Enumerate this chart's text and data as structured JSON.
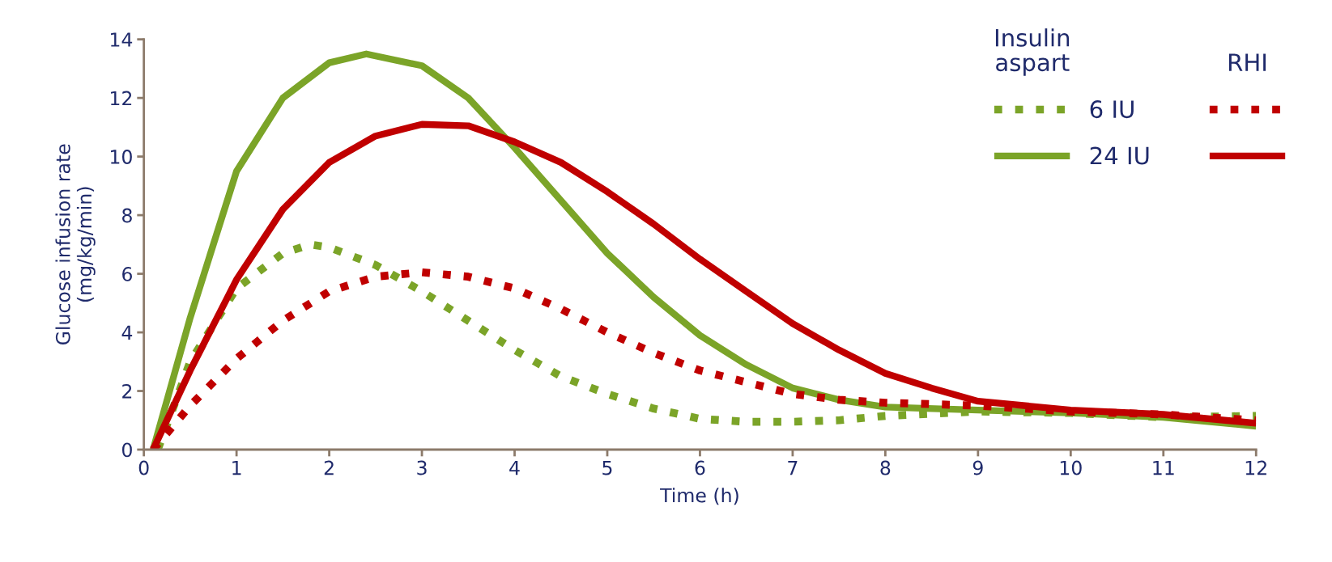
{
  "chart_data": {
    "type": "line",
    "xlabel": "Time (h)",
    "ylabel": "Glucose infusion rate\n(mg/kg/min)",
    "xlim": [
      0,
      12
    ],
    "xticks": [
      0,
      1,
      2,
      3,
      4,
      5,
      6,
      7,
      8,
      9,
      10,
      11,
      12
    ],
    "ylim": [
      0,
      14
    ],
    "yticks": [
      0,
      2,
      4,
      6,
      8,
      10,
      12,
      14
    ],
    "grid": false,
    "legend": "top right",
    "marker": "none",
    "annotations": [
      "Insulin\naspart",
      "RHI"
    ],
    "series": [
      {
        "name": "6 IU",
        "color": "#7ba428",
        "line_style": "dotted",
        "x": [
          0.15,
          0.5,
          1,
          1.5,
          1.8,
          2,
          2.5,
          3,
          3.5,
          4,
          4.5,
          5,
          5.5,
          6,
          6.5,
          7,
          7.5,
          8,
          9,
          10,
          11,
          12
        ],
        "values": [
          0,
          3,
          5.5,
          6.7,
          7.0,
          6.9,
          6.3,
          5.4,
          4.4,
          3.4,
          2.5,
          1.9,
          1.4,
          1.05,
          0.95,
          0.95,
          1.0,
          1.15,
          1.3,
          1.25,
          1.1,
          1.15
        ]
      },
      {
        "name": "24 IU",
        "color": "#7ba428",
        "line_style": "solid",
        "x": [
          0.1,
          0.5,
          1,
          1.5,
          2,
          2.4,
          3,
          3.5,
          4,
          4.5,
          5,
          5.5,
          6,
          6.5,
          7,
          7.5,
          8,
          9,
          10,
          11,
          12
        ],
        "values": [
          0,
          4.5,
          9.5,
          12,
          13.2,
          13.5,
          13.1,
          12,
          10.3,
          8.5,
          6.7,
          5.2,
          3.9,
          2.9,
          2.1,
          1.7,
          1.45,
          1.35,
          1.25,
          1.1,
          0.8
        ]
      },
      {
        "color": "#c00000",
        "line_style": "dotted",
        "x": [
          0.1,
          0.5,
          1,
          1.5,
          2,
          2.5,
          3,
          3.5,
          4,
          4.5,
          5,
          5.5,
          6,
          6.5,
          7,
          7.5,
          8,
          9,
          10,
          11,
          12
        ],
        "values": [
          0,
          1.5,
          3.1,
          4.4,
          5.4,
          5.9,
          6.05,
          5.9,
          5.5,
          4.8,
          4.0,
          3.3,
          2.7,
          2.3,
          1.9,
          1.7,
          1.6,
          1.5,
          1.3,
          1.2,
          1.0
        ]
      },
      {
        "color": "#c00000",
        "line_style": "solid",
        "x": [
          0.1,
          0.5,
          1,
          1.5,
          2,
          2.5,
          3,
          3.5,
          4,
          4.5,
          5,
          5.5,
          6,
          6.5,
          7,
          7.5,
          8,
          8.5,
          9,
          10,
          11,
          12
        ],
        "values": [
          0,
          2.7,
          5.8,
          8.2,
          9.8,
          10.7,
          11.1,
          11.05,
          10.5,
          9.8,
          8.8,
          7.7,
          6.5,
          5.4,
          4.3,
          3.4,
          2.6,
          2.1,
          1.65,
          1.35,
          1.2,
          0.9
        ]
      }
    ]
  }
}
